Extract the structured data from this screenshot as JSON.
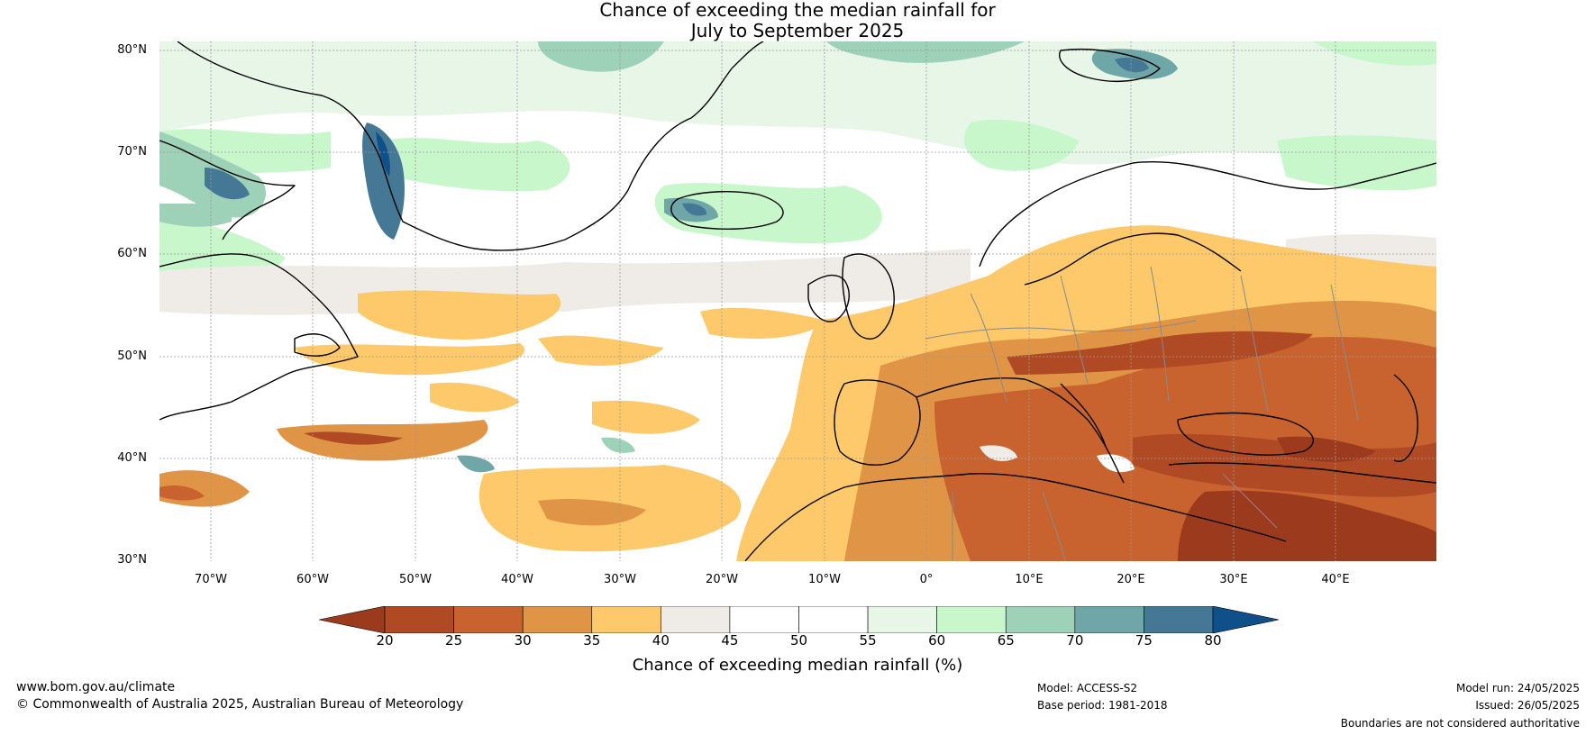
{
  "title_line1": "Chance of exceeding the median rainfall for",
  "title_line2": "July to September 2025",
  "lat_labels": [
    "80°N",
    "70°N",
    "60°N",
    "50°N",
    "40°N",
    "30°N"
  ],
  "lon_labels": [
    "70°W",
    "60°W",
    "50°W",
    "40°W",
    "30°W",
    "20°W",
    "10°W",
    "0°",
    "10°E",
    "20°E",
    "30°E",
    "40°E"
  ],
  "colorbar": {
    "ticks": [
      "20",
      "25",
      "30",
      "35",
      "40",
      "45",
      "50",
      "55",
      "60",
      "65",
      "70",
      "75",
      "80"
    ],
    "colors": [
      "#9c3a1e",
      "#b04a24",
      "#c8622f",
      "#e09445",
      "#fdc96a",
      "#efebe6",
      "#ffffff",
      "#ffffff",
      "#e8f6e8",
      "#c7f7cb",
      "#9dd1b8",
      "#6fa6a8",
      "#447894",
      "#10508a"
    ],
    "label": "Chance of exceeding median rainfall (%)"
  },
  "footer": {
    "website": "www.bom.gov.au/climate",
    "copyright": "© Commonwealth of Australia 2025, Australian Bureau of Meteorology",
    "model": "Model: ACCESS-S2",
    "base_period": "Base period: 1981-2018",
    "model_run": "Model run: 24/05/2025",
    "issued": "Issued: 26/05/2025",
    "disclaimer": "Boundaries are not considered authoritative"
  }
}
